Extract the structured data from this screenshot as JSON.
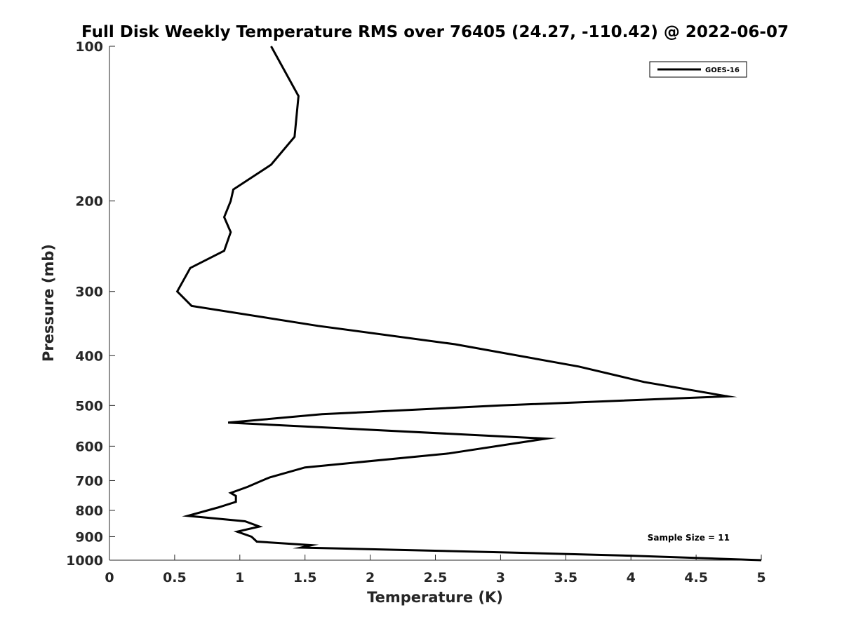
{
  "chart_data": {
    "type": "line",
    "title": "Full Disk Weekly Temperature RMS over 76405 (24.27, -110.42) @ 2022-06-07",
    "xlabel": "Temperature (K)",
    "ylabel": "Pressure (mb)",
    "xlim": [
      0,
      5
    ],
    "ylim": [
      100,
      1000
    ],
    "y_scale": "log",
    "y_reversed": true,
    "x_ticks": [
      "0",
      "0.5",
      "1",
      "1.5",
      "2",
      "2.5",
      "3",
      "3.5",
      "4",
      "4.5",
      "5"
    ],
    "y_ticks": [
      "100",
      "200",
      "300",
      "400",
      "500",
      "600",
      "700",
      "800",
      "900",
      "1000"
    ],
    "grid": false,
    "legend_position": "top-right",
    "annotation": "Sample Size = 11",
    "series": [
      {
        "name": "GOES-16",
        "color": "#000000",
        "points": [
          [
            1.24,
            100
          ],
          [
            1.45,
            125
          ],
          [
            1.42,
            150
          ],
          [
            1.24,
            170
          ],
          [
            0.95,
            190
          ],
          [
            0.93,
            200
          ],
          [
            0.88,
            215
          ],
          [
            0.93,
            230
          ],
          [
            0.88,
            250
          ],
          [
            0.62,
            270
          ],
          [
            0.52,
            300
          ],
          [
            0.63,
            320
          ],
          [
            1.6,
            350
          ],
          [
            2.65,
            380
          ],
          [
            3.6,
            420
          ],
          [
            4.1,
            450
          ],
          [
            4.74,
            480
          ],
          [
            3.0,
            500
          ],
          [
            1.63,
            520
          ],
          [
            0.91,
            540
          ],
          [
            3.35,
            580
          ],
          [
            2.6,
            620
          ],
          [
            1.5,
            660
          ],
          [
            1.23,
            690
          ],
          [
            1.17,
            700
          ],
          [
            1.06,
            720
          ],
          [
            0.93,
            740
          ],
          [
            0.97,
            750
          ],
          [
            0.97,
            770
          ],
          [
            0.83,
            790
          ],
          [
            0.6,
            820
          ],
          [
            1.04,
            840
          ],
          [
            1.15,
            860
          ],
          [
            0.98,
            880
          ],
          [
            1.09,
            900
          ],
          [
            1.13,
            920
          ],
          [
            1.55,
            935
          ],
          [
            1.47,
            945
          ],
          [
            3.0,
            965
          ],
          [
            4.0,
            980
          ],
          [
            5.0,
            1000
          ]
        ]
      }
    ]
  }
}
